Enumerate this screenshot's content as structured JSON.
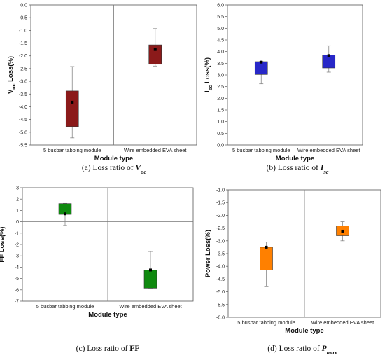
{
  "chart_data": [
    {
      "type": "box",
      "ylabel": "Vₒᶜ Loss(%)",
      "ylabel_main": "V",
      "ylabel_sub": "oc",
      "ylabel_rest": " Loss(%)",
      "xlabel": "Module type",
      "categories": [
        "5 busbar tabbing module",
        "Wire embedded EVA sheet"
      ],
      "ylim": [
        -5.5,
        0.0
      ],
      "yticks": [
        "0.0",
        "-0.5",
        "-1.0",
        "-1.5",
        "-2.0",
        "-2.5",
        "-3.0",
        "-3.5",
        "-4.0",
        "-4.5",
        "-5.0",
        "-5.5"
      ],
      "color": "#8b1a1a",
      "boxes": [
        {
          "q1": -4.78,
          "q3": -3.38,
          "mean": -3.82,
          "whisker_low": -5.22,
          "whisker_high": -2.42
        },
        {
          "q1": -2.33,
          "q3": -1.57,
          "mean": -1.75,
          "whisker_low": -2.4,
          "whisker_high": -0.93
        }
      ],
      "caption_prefix": "(a)",
      "caption_text": " Loss ratio of ",
      "caption_sym": "V",
      "caption_sub": "oc"
    },
    {
      "type": "box",
      "ylabel_main": "I",
      "ylabel_sub": "sc",
      "ylabel_rest": " Loss(%)",
      "xlabel": "Module type",
      "categories": [
        "5 busbar tabbing module",
        "Wire embedded EVA sheet"
      ],
      "ylim": [
        0.0,
        6.0
      ],
      "yticks": [
        "0.0",
        "0.5",
        "1.0",
        "1.5",
        "2.0",
        "2.5",
        "3.0",
        "3.5",
        "4.0",
        "4.5",
        "5.0",
        "5.5",
        "6.0"
      ],
      "color": "#2828c8",
      "boxes": [
        {
          "q1": 3.02,
          "q3": 3.57,
          "mean": 3.55,
          "whisker_low": 2.62,
          "whisker_high": 3.58
        },
        {
          "q1": 3.3,
          "q3": 3.85,
          "mean": 3.83,
          "whisker_low": 3.12,
          "whisker_high": 4.25
        }
      ],
      "caption_prefix": "(b)",
      "caption_text": " Loss ratio of ",
      "caption_sym": "I",
      "caption_sub": "sc"
    },
    {
      "type": "box",
      "ylabel_main": "FF Loss(%)",
      "ylabel_sub": "",
      "ylabel_rest": "",
      "xlabel": "Module type",
      "categories": [
        "5 busbar tabbing module",
        "Wire embedded EVA sheet"
      ],
      "ylim": [
        -7,
        3
      ],
      "yticks": [
        "3",
        "2",
        "1",
        "0",
        "-1",
        "-2",
        "-3",
        "-4",
        "-5",
        "-6",
        "-7"
      ],
      "zero_line": true,
      "color": "#0f8a0f",
      "boxes": [
        {
          "q1": 0.65,
          "q3": 1.6,
          "mean": 0.7,
          "whisker_low": -0.33,
          "whisker_high": 1.62
        },
        {
          "q1": -5.85,
          "q3": -4.25,
          "mean": -4.25,
          "whisker_low": -5.85,
          "whisker_high": -2.62
        }
      ],
      "caption_prefix": "(c)",
      "caption_text": " Loss ratio of ",
      "caption_sym": "FF",
      "caption_sub": ""
    },
    {
      "type": "box",
      "ylabel_main": "Power Loss(%)",
      "ylabel_sub": "",
      "ylabel_rest": "",
      "xlabel": "Module type",
      "categories": [
        "5 busbar tabbing module",
        "Wire embedded EVA sheet"
      ],
      "ylim": [
        -6.0,
        -1.0
      ],
      "yticks": [
        "-1.0",
        "-1.5",
        "-2.0",
        "-2.5",
        "-3.0",
        "-3.5",
        "-4.0",
        "-4.5",
        "-5.0",
        "-5.5",
        "-6.0"
      ],
      "color": "#ff8000",
      "boxes": [
        {
          "q1": -4.15,
          "q3": -3.25,
          "mean": -3.25,
          "whisker_low": -4.8,
          "whisker_high": -3.05
        },
        {
          "q1": -2.8,
          "q3": -2.42,
          "mean": -2.62,
          "whisker_low": -3.0,
          "whisker_high": -2.25
        }
      ],
      "caption_prefix": "(d)",
      "caption_text": " Loss ratio of ",
      "caption_sym": "P",
      "caption_sub": "max"
    }
  ]
}
